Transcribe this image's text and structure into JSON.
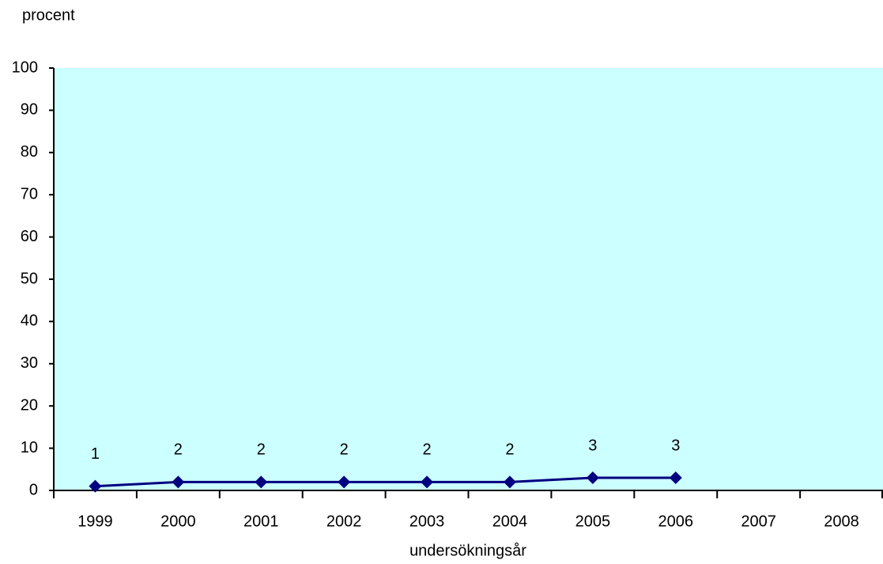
{
  "chart_data": {
    "type": "line",
    "y_axis_label": "procent",
    "x_axis_label": "undersökningsår",
    "categories": [
      "1999",
      "2000",
      "2001",
      "2002",
      "2003",
      "2004",
      "2005",
      "2006",
      "2007",
      "2008"
    ],
    "values": [
      1,
      2,
      2,
      2,
      2,
      2,
      3,
      3,
      null,
      null
    ],
    "color": "#000080",
    "plot_background": "#ccffff",
    "ylim": [
      0,
      100
    ],
    "yticks": [
      0,
      10,
      20,
      30,
      40,
      50,
      60,
      70,
      80,
      90,
      100
    ]
  }
}
